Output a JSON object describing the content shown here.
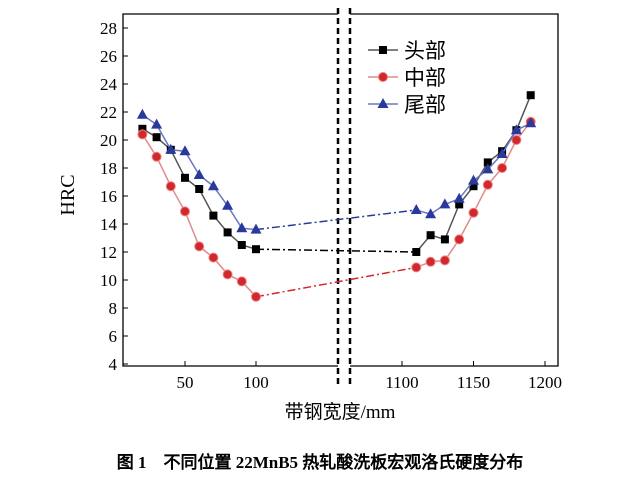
{
  "chart_data": {
    "type": "line",
    "caption": "图 1　不同位置 22MnB5 热轧酸洗板宏观洛氏硬度分布",
    "xlabel": "带钢宽度/mm",
    "ylabel": "HRC",
    "ylim": [
      4,
      28
    ],
    "yticks": [
      4,
      6,
      8,
      10,
      12,
      14,
      16,
      18,
      20,
      22,
      24,
      26,
      28
    ],
    "xticks_left": [
      50,
      100
    ],
    "xticks_right": [
      1100,
      1150,
      1200
    ],
    "axis_break": true,
    "grid": false,
    "legend_position": "top-right",
    "x_left": [
      20,
      30,
      40,
      50,
      60,
      70,
      80,
      90,
      100
    ],
    "x_right": [
      1110,
      1120,
      1130,
      1140,
      1150,
      1160,
      1170,
      1180,
      1190
    ],
    "series": [
      {
        "name": "头部",
        "color": "#000000",
        "marker": "square",
        "left": [
          20.8,
          20.2,
          19.3,
          17.3,
          16.5,
          14.6,
          13.4,
          12.5,
          12.2
        ],
        "right": [
          12.0,
          13.2,
          12.9,
          15.4,
          16.7,
          18.4,
          19.2,
          20.7,
          23.2
        ]
      },
      {
        "name": "中部",
        "color": "#d0282c",
        "marker": "circle",
        "left": [
          20.4,
          18.8,
          16.7,
          14.9,
          12.4,
          11.6,
          10.4,
          9.9,
          8.8
        ],
        "right": [
          10.9,
          11.3,
          11.4,
          12.9,
          14.8,
          16.8,
          18.0,
          20.0,
          21.3
        ]
      },
      {
        "name": "尾部",
        "color": "#2a3a9c",
        "marker": "triangle",
        "left": [
          21.8,
          21.1,
          19.3,
          19.2,
          17.5,
          16.7,
          15.3,
          13.7,
          13.6
        ],
        "right": [
          15.0,
          14.7,
          15.4,
          15.8,
          17.1,
          17.9,
          19.0,
          20.7,
          21.2
        ]
      }
    ]
  }
}
